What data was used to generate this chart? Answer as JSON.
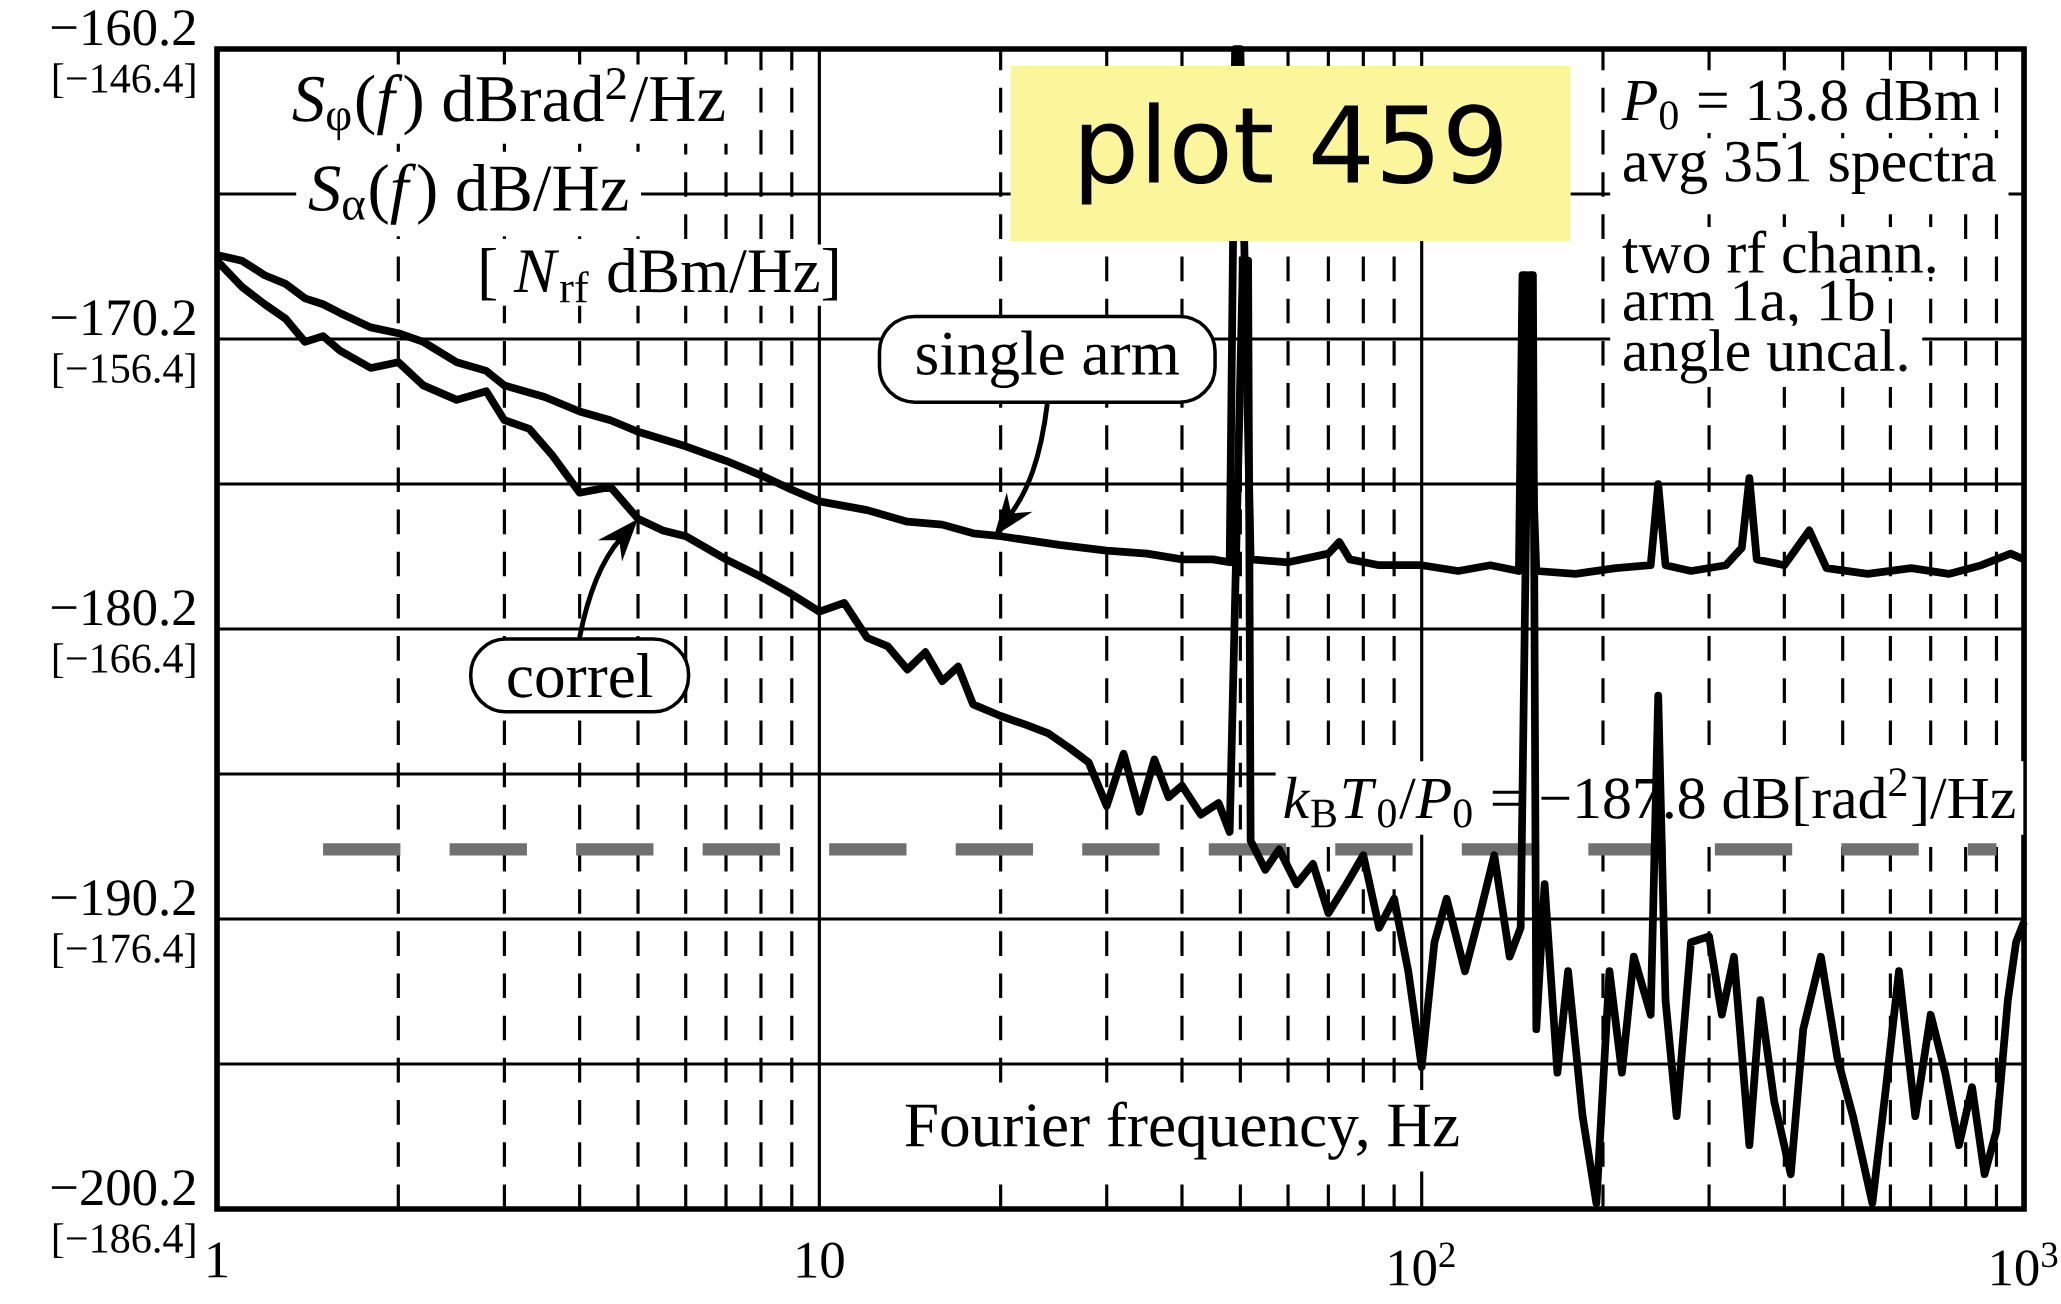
{
  "chart_data": {
    "type": "line",
    "xlabel": "Fourier frequency, Hz",
    "x": [
      1.0,
      1.1,
      1.2,
      1.3,
      1.4,
      1.5,
      1.6,
      1.8,
      2.0,
      2.2,
      2.5,
      2.8,
      3.0,
      3.5,
      4.0,
      4.5,
      5.0,
      6.0,
      7.0,
      8.0,
      9.0,
      10,
      12,
      14,
      16,
      18,
      20,
      25,
      30,
      35,
      40,
      45,
      48,
      49,
      50,
      52,
      60,
      70,
      73,
      76,
      85,
      100,
      115,
      130,
      145,
      147,
      149,
      155,
      180,
      210,
      240,
      247,
      254,
      280,
      320,
      340,
      350,
      360,
      400,
      440,
      470,
      550,
      650,
      750,
      850,
      950,
      1000
    ],
    "series": [
      {
        "color": "#000000",
        "values": [
          -167.3,
          -167.5,
          -168.0,
          -168.3,
          -168.8,
          -169.0,
          -169.3,
          -169.8,
          -170.0,
          -170.3,
          -171.0,
          -171.3,
          -171.8,
          -172.2,
          -172.7,
          -173.0,
          -173.4,
          -173.9,
          -174.4,
          -174.9,
          -175.4,
          -175.8,
          -176.1,
          -176.5,
          -176.6,
          -176.9,
          -177.0,
          -177.3,
          -177.5,
          -177.6,
          -177.8,
          -177.8,
          -177.9,
          -160.2,
          -160.2,
          -177.8,
          -177.9,
          -177.6,
          -177.2,
          -177.8,
          -178.0,
          -178.0,
          -178.2,
          -178.0,
          -178.2,
          -168.0,
          -168.0,
          -178.2,
          -178.3,
          -178.1,
          -178.0,
          -175.2,
          -178.0,
          -178.2,
          -178.0,
          -177.4,
          -175.0,
          -177.8,
          -178.0,
          -176.8,
          -178.1,
          -178.3,
          -178.1,
          -178.3,
          -178.0,
          -177.6,
          -177.8
        ]
      },
      {
        "color": "#000000",
        "x": [
          1.0,
          1.1,
          1.2,
          1.3,
          1.4,
          1.5,
          1.6,
          1.8,
          2.0,
          2.2,
          2.5,
          2.8,
          3.0,
          3.3,
          3.6,
          4.0,
          4.5,
          5.0,
          5.5,
          6.0,
          7.0,
          8.0,
          9.0,
          10,
          11,
          12,
          13,
          14,
          15,
          16,
          17,
          18,
          20,
          22,
          24,
          26,
          28,
          30,
          32,
          34,
          36,
          38,
          40,
          43,
          46,
          48,
          50.5,
          51.5,
          52,
          55,
          58,
          62,
          66,
          70,
          75,
          80,
          85,
          90,
          95,
          100,
          105,
          110,
          118,
          125,
          132,
          140,
          146,
          151,
          153,
          155,
          160,
          168,
          175,
          185,
          195,
          205,
          215,
          225,
          240,
          247,
          254,
          265,
          280,
          300,
          315,
          330,
          350,
          365,
          385,
          410,
          430,
          460,
          490,
          520,
          560,
          590,
          620,
          660,
          700,
          740,
          780,
          820,
          860,
          900,
          940,
          970,
          1000
        ],
        "values": [
          -167.5,
          -168.4,
          -169.0,
          -169.5,
          -170.3,
          -170.1,
          -170.6,
          -171.2,
          -171.0,
          -171.8,
          -172.3,
          -172.0,
          -173.0,
          -173.3,
          -174.2,
          -175.5,
          -175.3,
          -176.4,
          -176.8,
          -177.0,
          -177.8,
          -178.4,
          -179.0,
          -179.6,
          -179.3,
          -180.5,
          -180.8,
          -181.6,
          -181.0,
          -182.0,
          -181.5,
          -182.8,
          -183.2,
          -183.5,
          -183.8,
          -184.3,
          -184.8,
          -186.3,
          -184.5,
          -186.5,
          -184.7,
          -186.0,
          -185.6,
          -186.6,
          -186.2,
          -187.2,
          -167.5,
          -167.5,
          -187.5,
          -188.5,
          -187.8,
          -189.0,
          -188.3,
          -190.0,
          -189.0,
          -188.0,
          -190.5,
          -189.5,
          -192.0,
          -195.3,
          -191.0,
          -189.5,
          -192.0,
          -190.0,
          -188.0,
          -191.5,
          -190.5,
          -168.0,
          -168.0,
          -194.0,
          -189.0,
          -195.5,
          -192.0,
          -197.0,
          -200.0,
          -192.0,
          -195.5,
          -191.5,
          -193.5,
          -182.5,
          -193.0,
          -197.0,
          -191.0,
          -190.8,
          -193.5,
          -191.5,
          -198.0,
          -193.0,
          -196.5,
          -199.0,
          -194.0,
          -191.5,
          -195.0,
          -197.0,
          -200.0,
          -196.0,
          -192.0,
          -197.0,
          -193.5,
          -195.5,
          -198.0,
          -196.0,
          -199.0,
          -197.5,
          -193.0,
          -191.0,
          -190.3
        ]
      }
    ],
    "log": "x",
    "xlim": [
      1,
      1000
    ],
    "xticks": [
      {
        "value": 1,
        "label": "1"
      },
      {
        "value": 2,
        "label": null
      },
      {
        "value": 3,
        "label": null
      },
      {
        "value": 4,
        "label": null
      },
      {
        "value": 5,
        "label": null
      },
      {
        "value": 6,
        "label": null
      },
      {
        "value": 7,
        "label": null
      },
      {
        "value": 8,
        "label": null
      },
      {
        "value": 9,
        "label": null
      },
      {
        "value": 10,
        "label": "10"
      },
      {
        "value": 20,
        "label": null
      },
      {
        "value": 30,
        "label": null
      },
      {
        "value": 40,
        "label": null
      },
      {
        "value": 50,
        "label": null
      },
      {
        "value": 60,
        "label": null
      },
      {
        "value": 70,
        "label": null
      },
      {
        "value": 80,
        "label": null
      },
      {
        "value": 90,
        "label": null
      },
      {
        "value": 100,
        "label": "10$^{2}$"
      },
      {
        "value": 200,
        "label": null
      },
      {
        "value": 300,
        "label": null
      },
      {
        "value": 400,
        "label": null
      },
      {
        "value": 500,
        "label": null
      },
      {
        "value": 600,
        "label": null
      },
      {
        "value": 700,
        "label": null
      },
      {
        "value": 800,
        "label": null
      },
      {
        "value": 900,
        "label": null
      },
      {
        "value": 1000,
        "label": "10$^{3}$"
      }
    ],
    "ylim": [
      -200.2,
      -160.2
    ],
    "yticks": [
      {
        "value": -200.2,
        "label": "−200.2"
      },
      {
        "value": -195.2,
        "label": null
      },
      {
        "value": -190.2,
        "label": "−190.2"
      },
      {
        "value": -185.2,
        "label": null
      },
      {
        "value": -180.2,
        "label": "−180.2"
      },
      {
        "value": -175.2,
        "label": null
      },
      {
        "value": -170.2,
        "label": "−170.2"
      },
      {
        "value": -165.2,
        "label": null
      },
      {
        "value": -160.2,
        "label": "−160.2"
      }
    ],
    "y2lim": [
      -186.4,
      -146.4
    ],
    "y2ticks": [
      {
        "value": -186.4,
        "label": "[−186.4]"
      },
      {
        "value": -176.4,
        "label": "[−176.4]"
      },
      {
        "value": -166.4,
        "label": "[−166.4]"
      },
      {
        "value": -156.4,
        "label": "[−156.4]"
      },
      {
        "value": -146.4,
        "label": "[−146.4]"
      }
    ],
    "grid": true,
    "line_style": "solid",
    "ref_lines": [
      {
        "axis": "y",
        "value": -187.8,
        "label": "*k*$_{B}$*T*$_{0}$/*P*$_{0}$ = −187.8 dB[rad$^{2}$]/Hz",
        "color": "#707070",
        "line_style": "dashed"
      }
    ],
    "annotations": [
      "*S*$_{φ}$(*f*)  dBrad$^{2}$/Hz",
      "*S*$_{α}$(*f*)  dB/Hz",
      "[ *N*$_{rf}$  dBm/Hz]",
      "plot 459",
      "*P*$_{0}$ = 13.8 dBm",
      "avg 351 spectra",
      "two rf chann.",
      "arm 1a, 1b",
      "angle uncal.",
      {
        "text": "single arm",
        "x": 19.5,
        "y": -177.0
      },
      {
        "text": "correl",
        "x": 5.0,
        "y": -176.4
      }
    ]
  }
}
